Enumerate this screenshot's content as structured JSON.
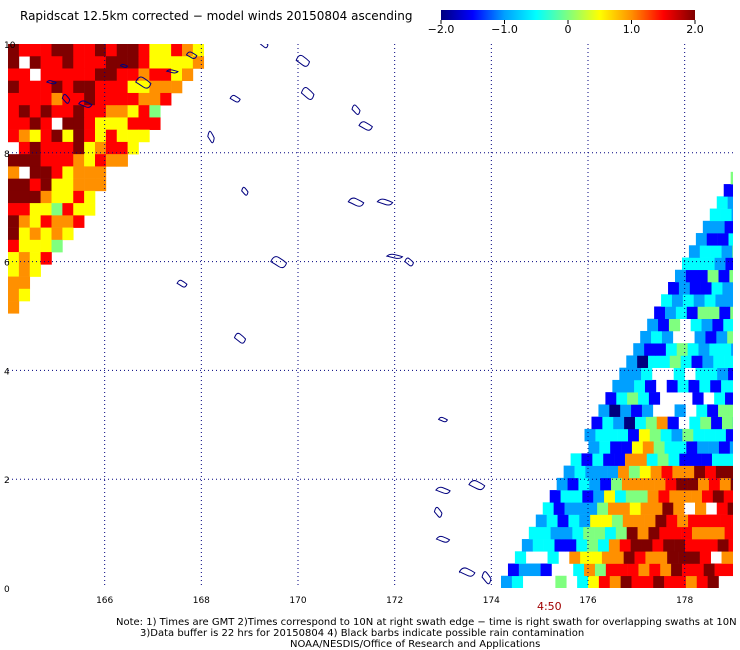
{
  "title": "Rapidscat 12.5km corrected − model winds 20150804 ascending",
  "colorbar": {
    "tick_labels": [
      "−2.0",
      "−1.0",
      "0",
      "1.0",
      "2.0"
    ],
    "tick_values": [
      -2.0,
      -1.0,
      0.0,
      1.0,
      2.0
    ],
    "range": [
      -2.0,
      2.0
    ],
    "colors": [
      "#00007f",
      "#0000ff",
      "#00a0ff",
      "#00ffff",
      "#7fff7f",
      "#ffff00",
      "#ff9000",
      "#ff0000",
      "#7f0000"
    ]
  },
  "map": {
    "lon_range": [
      164.0,
      179.0
    ],
    "lat_range": [
      0.0,
      10.0
    ],
    "lon_grid": [
      166,
      168,
      170,
      172,
      174,
      176,
      178
    ],
    "lat_grid": [
      2,
      4,
      6,
      8
    ],
    "lon_labels": [
      "166",
      "168",
      "170",
      "172",
      "174",
      "176",
      "178"
    ],
    "lat_labels": [
      "0",
      "2",
      "4",
      "6",
      "8",
      "10"
    ],
    "grid_style": "dotted",
    "swath_time_label": "4:50",
    "swath_time_lon": 175.2,
    "swath_time_color": "#a00000",
    "coast_color": "#00007f"
  },
  "notes": {
    "line1": "Note: 1) Times are GMT 2)Times correspond to 10N at right swath edge − time is right swath for overlapping swaths at 10N",
    "line2": "3)Data buffer is 22 hrs for 20150804 4) Black barbs indicate possible rain contamination",
    "line3": "NOAA/NESDIS/Office of Research and Applications"
  },
  "islands": [
    {
      "lon": 164.9,
      "lat": 9.3
    },
    {
      "lon": 165.2,
      "lat": 9.0
    },
    {
      "lon": 165.6,
      "lat": 8.9
    },
    {
      "lon": 166.4,
      "lat": 9.6
    },
    {
      "lon": 166.8,
      "lat": 9.3
    },
    {
      "lon": 167.4,
      "lat": 9.5
    },
    {
      "lon": 167.8,
      "lat": 9.8
    },
    {
      "lon": 168.2,
      "lat": 8.3
    },
    {
      "lon": 168.9,
      "lat": 7.3
    },
    {
      "lon": 168.7,
      "lat": 9.0
    },
    {
      "lon": 169.3,
      "lat": 10.0
    },
    {
      "lon": 170.1,
      "lat": 9.7
    },
    {
      "lon": 170.2,
      "lat": 9.1
    },
    {
      "lon": 171.2,
      "lat": 8.8
    },
    {
      "lon": 171.4,
      "lat": 8.5
    },
    {
      "lon": 171.2,
      "lat": 7.1
    },
    {
      "lon": 171.8,
      "lat": 7.1
    },
    {
      "lon": 169.6,
      "lat": 6.0
    },
    {
      "lon": 172.0,
      "lat": 6.1
    },
    {
      "lon": 172.3,
      "lat": 6.0
    },
    {
      "lon": 167.6,
      "lat": 5.6
    },
    {
      "lon": 168.8,
      "lat": 4.6
    },
    {
      "lon": 173.0,
      "lat": 3.1
    },
    {
      "lon": 173.0,
      "lat": 1.8
    },
    {
      "lon": 173.7,
      "lat": 1.9
    },
    {
      "lon": 172.9,
      "lat": 1.4
    },
    {
      "lon": 173.0,
      "lat": 0.9
    },
    {
      "lon": 173.5,
      "lat": 0.3
    },
    {
      "lon": 173.9,
      "lat": 0.2
    }
  ]
}
